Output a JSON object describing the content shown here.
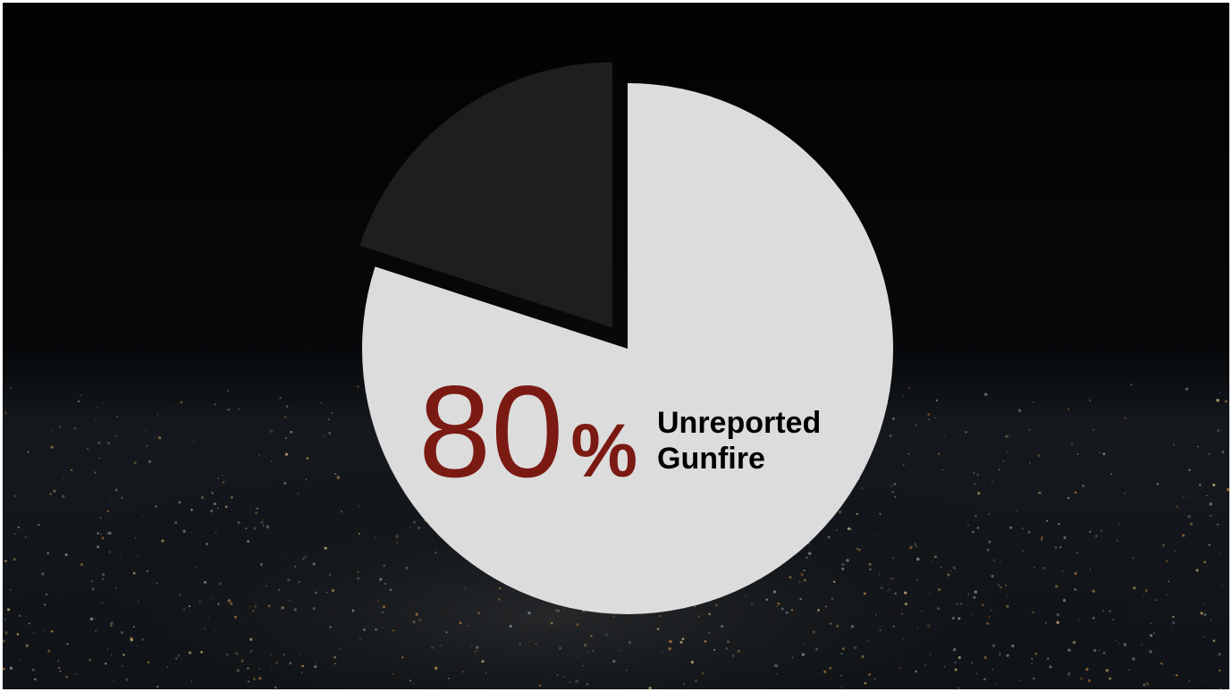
{
  "chart_data": {
    "type": "pie",
    "categories": [
      "Unreported Gunfire",
      null
    ],
    "values": [
      80,
      20
    ],
    "value_labels": [
      "80%",
      null
    ],
    "colors": [
      "#dcdcdc",
      "#1e1e1e"
    ]
  }
}
